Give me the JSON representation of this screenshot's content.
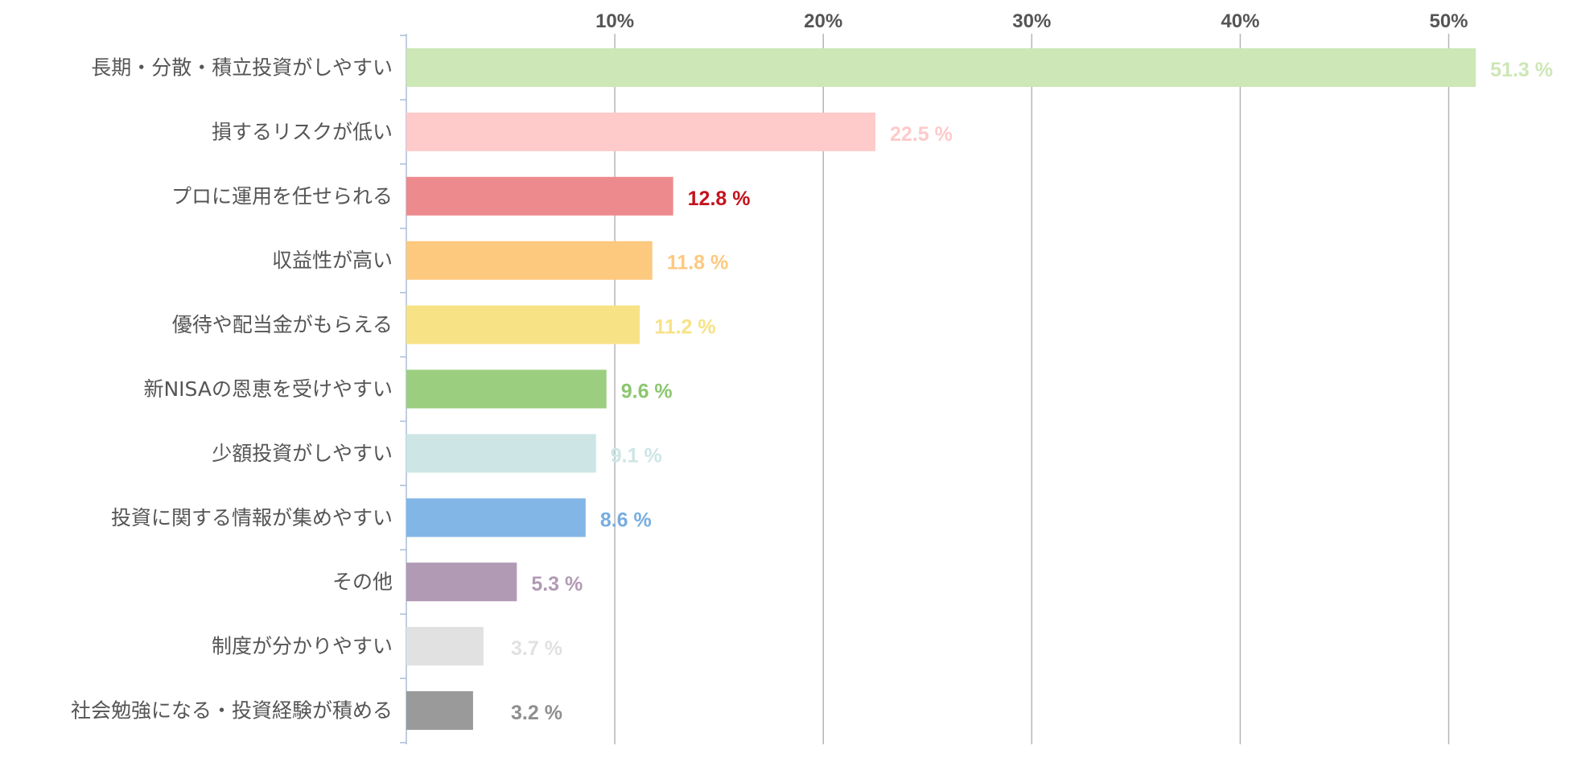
{
  "chart_data": {
    "type": "bar",
    "orientation": "horizontal",
    "categories": [
      "長期・分散・積立投資がしやすい",
      "損するリスクが低い",
      "プロに運用を任せられる",
      "収益性が高い",
      "優待や配当金がもらえる",
      "新NISAの恩恵を受けやすい",
      "少額投資がしやすい",
      "投資に関する情報が集めやすい",
      "その他",
      "制度が分かりやすい",
      "社会勉強になる・投資経験が積める"
    ],
    "values": [
      51.3,
      22.5,
      12.8,
      11.8,
      11.2,
      9.6,
      9.1,
      8.6,
      5.3,
      3.7,
      3.2
    ],
    "value_labels": [
      "51.3 %",
      "22.5 %",
      "12.8 %",
      "11.8 %",
      "11.2 %",
      "9.6 %",
      "9.1 %",
      "8.6 %",
      "5.3 %",
      "3.7 %",
      "3.2 %"
    ],
    "bar_colors": [
      "#cde7b6",
      "#fecaca",
      "#ed8a8d",
      "#fdc97f",
      "#f7e286",
      "#9bcf7f",
      "#cde6e5",
      "#82b6e6",
      "#b19ab4",
      "#e1e1e1",
      "#9a9a9a"
    ],
    "label_colors": [
      "#cde7b6",
      "#fecaca",
      "#c4121d",
      "#fdc97f",
      "#f7e286",
      "#8bc66f",
      "#cde6e5",
      "#78addf",
      "#b19ab4",
      "#e1e1e1",
      "#8f8f8f"
    ],
    "ticks": [
      10,
      20,
      30,
      40,
      50
    ],
    "tick_labels": [
      "10%",
      "20%",
      "30%",
      "40%",
      "50%"
    ],
    "xlim": [
      0,
      55
    ],
    "grid": true,
    "legend": "none"
  }
}
